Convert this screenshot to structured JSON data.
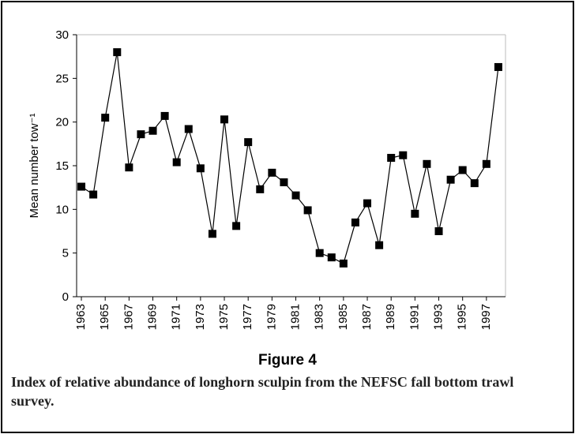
{
  "chart_data": {
    "type": "line",
    "y_label": "Mean number tow⁻¹",
    "figure_label": "Figure 4",
    "caption": "Index of relative abundance of longhorn sculpin from the NEFSC fall bottom trawl survey.",
    "x": [
      1963,
      1964,
      1965,
      1966,
      1967,
      1968,
      1969,
      1970,
      1971,
      1972,
      1973,
      1974,
      1975,
      1976,
      1977,
      1978,
      1979,
      1980,
      1981,
      1982,
      1983,
      1984,
      1985,
      1986,
      1987,
      1988,
      1989,
      1990,
      1991,
      1992,
      1993,
      1994,
      1995,
      1996,
      1997,
      1998
    ],
    "values": [
      12.6,
      11.7,
      20.5,
      28.0,
      14.8,
      18.6,
      19.0,
      20.7,
      15.4,
      19.2,
      14.7,
      7.2,
      20.3,
      8.1,
      17.7,
      12.3,
      14.2,
      13.1,
      11.6,
      9.9,
      5.0,
      4.5,
      3.8,
      8.5,
      10.7,
      5.9,
      15.9,
      16.2,
      9.5,
      15.2,
      7.5,
      13.4,
      14.5,
      13.0,
      15.2,
      26.3
    ],
    "color": "#000000",
    "xlim": [
      1962.6,
      1998.6
    ],
    "xticks": [
      1963,
      1965,
      1967,
      1969,
      1971,
      1973,
      1975,
      1977,
      1979,
      1981,
      1983,
      1985,
      1987,
      1989,
      1991,
      1993,
      1995,
      1997
    ],
    "ylim": [
      0,
      30
    ],
    "yticks": [
      0,
      5,
      10,
      15,
      20,
      25,
      30
    ],
    "grid": false
  }
}
